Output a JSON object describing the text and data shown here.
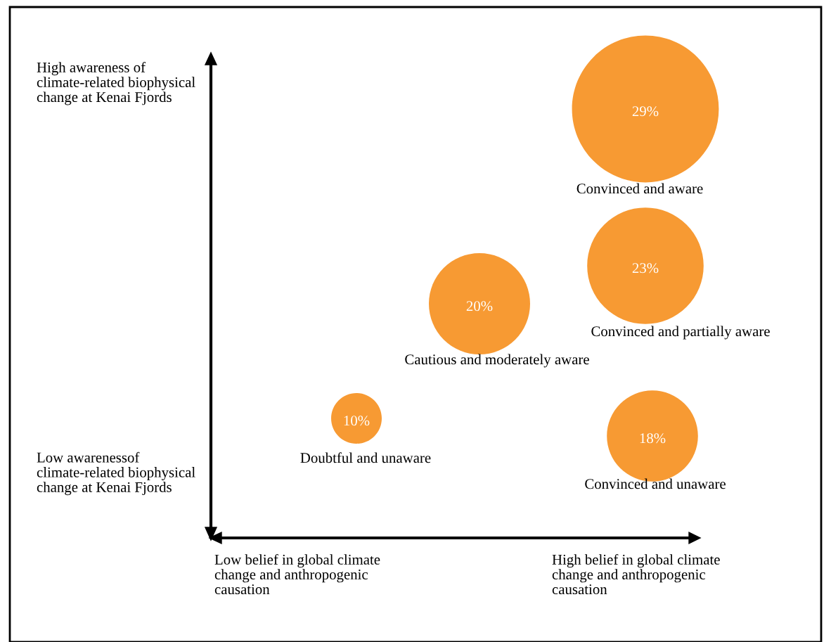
{
  "chart_data": {
    "type": "other",
    "categories": [
      "Convinced and aware",
      "Convinced and partially aware",
      "Cautious and moderately aware",
      "Doubtful and unaware",
      "Convinced and unaware"
    ],
    "values": [
      29,
      23,
      20,
      10,
      18
    ],
    "value_labels": [
      "29%",
      "23%",
      "20%",
      "10%",
      "18%"
    ],
    "colors": [
      "#f79a33",
      "#f79a33",
      "#f79a33",
      "#f79a33",
      "#f79a33"
    ],
    "annotations": [
      "High awareness of climate-related biophysical change at Kenai Fjords",
      "Low awarenessof climate-related biophysical change at Kenai Fjords",
      "Low belief in global climate change and anthropogenic causation",
      "High belief in global climate change and anthropogenic causation"
    ]
  }
}
